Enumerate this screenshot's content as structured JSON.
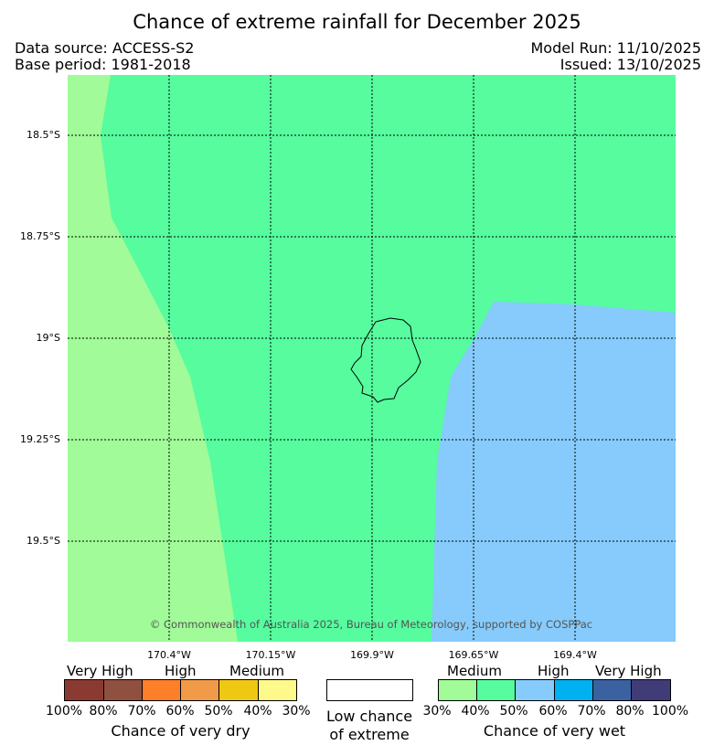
{
  "title": "Chance of extreme rainfall for December 2025",
  "meta": {
    "data_source": "Data source: ACCESS-S2",
    "base_period": "Base period: 1981-2018",
    "model_run": "Model Run: 11/10/2025",
    "issued": "Issued: 13/10/2025"
  },
  "map": {
    "lat_ticks": [
      "18.5°S",
      "18.75°S",
      "19°S",
      "19.25°S",
      "19.5°S"
    ],
    "lon_ticks": [
      "170.4°W",
      "170.15°W",
      "169.9°W",
      "169.65°W",
      "169.4°W"
    ],
    "copyright": "© Commonwealth of Australia 2025, Bureau of Meteorology, supported by COSPPac",
    "colors": {
      "wet_medium": "#a0fb98",
      "wet_medium_high": "#56fc9e",
      "wet_high": "#86cbfb"
    }
  },
  "legend": {
    "dry": {
      "levels": [
        "Very High",
        "High",
        "Medium"
      ],
      "percentages": [
        "100%",
        "80%",
        "70%",
        "60%",
        "50%",
        "40%",
        "30%"
      ],
      "colors": [
        "#8b3a32",
        "#8f5040",
        "#fd7f29",
        "#f19a48",
        "#eec813",
        "#fdf98b"
      ],
      "caption": "Chance of very dry"
    },
    "low": {
      "caption_line1": "Low chance",
      "caption_line2": "of extreme",
      "color": "#ffffff"
    },
    "wet": {
      "levels": [
        "Medium",
        "High",
        "Very High"
      ],
      "percentages": [
        "30%",
        "40%",
        "50%",
        "60%",
        "70%",
        "80%",
        "100%"
      ],
      "colors": [
        "#a0fb98",
        "#56fc9e",
        "#86cbfb",
        "#00b1f1",
        "#3a62a1",
        "#403c78"
      ],
      "caption": "Chance of very wet"
    }
  }
}
